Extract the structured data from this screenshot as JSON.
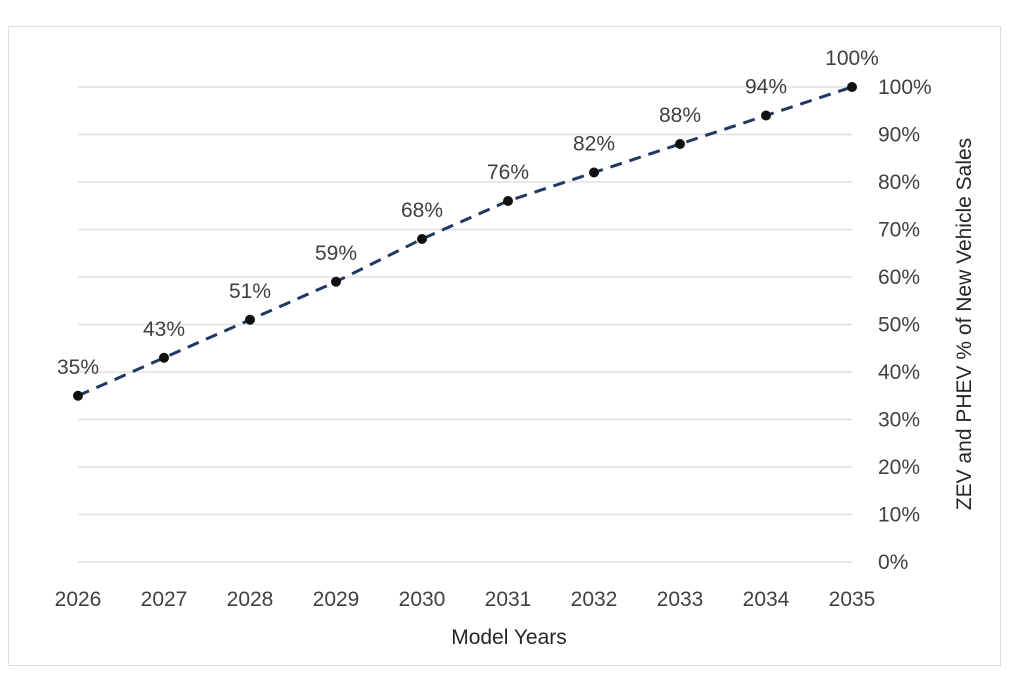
{
  "chart_data": {
    "type": "line",
    "title": "",
    "xlabel": "Model Years",
    "ylabel": "ZEV and PHEV % of New Vehicle Sales",
    "x": [
      "2026",
      "2027",
      "2028",
      "2029",
      "2030",
      "2031",
      "2032",
      "2033",
      "2034",
      "2035"
    ],
    "series": [
      {
        "values": [
          35,
          43,
          51,
          59,
          68,
          76,
          82,
          88,
          94,
          100
        ],
        "data_labels": [
          "35%",
          "43%",
          "51%",
          "59%",
          "68%",
          "76%",
          "82%",
          "88%",
          "94%",
          "100%"
        ],
        "color": "#1f3864",
        "line_style": "dashed",
        "marker_color": "#111111"
      }
    ],
    "ylim": [
      0,
      100
    ],
    "y_ticks": [
      0,
      10,
      20,
      30,
      40,
      50,
      60,
      70,
      80,
      90,
      100
    ],
    "y_tick_labels": [
      "0%",
      "10%",
      "20%",
      "30%",
      "40%",
      "50%",
      "60%",
      "70%",
      "80%",
      "90%",
      "100%"
    ],
    "y_axis_position": "right",
    "grid": true,
    "gridline_color": "#e0e0e0",
    "legend": "none"
  }
}
